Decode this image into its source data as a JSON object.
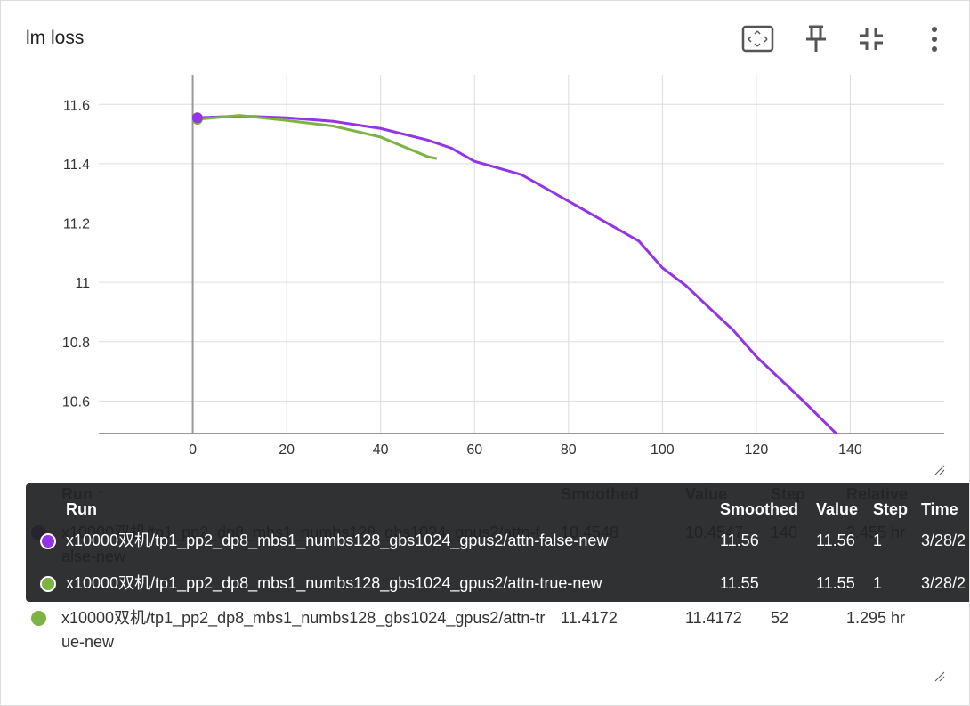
{
  "title": "lm loss",
  "chart_data": {
    "type": "line",
    "xlim": [
      -20,
      160
    ],
    "ylim": [
      10.49,
      11.7
    ],
    "xticks": [
      0,
      20,
      40,
      60,
      80,
      100,
      120,
      140
    ],
    "yticks": [
      10.6,
      10.8,
      11,
      11.2,
      11.4,
      11.6
    ],
    "grid": true,
    "series": [
      {
        "name": "x10000双机/tp1_pp2_dp8_mbs1_numbs128_gbs1024_gpus2/attn-false-new",
        "color": "#9334e6",
        "x": [
          1,
          10,
          20,
          30,
          40,
          50,
          55,
          60,
          70,
          80,
          90,
          95,
          100,
          105,
          110,
          115,
          120,
          125,
          130,
          137,
          140
        ],
        "values": [
          11.555,
          11.561,
          11.555,
          11.543,
          11.519,
          11.48,
          11.453,
          11.408,
          11.363,
          11.274,
          11.184,
          11.139,
          11.049,
          10.989,
          10.914,
          10.84,
          10.75,
          10.675,
          10.6,
          10.49,
          10.4548
        ]
      },
      {
        "name": "x10000双机/tp1_pp2_dp8_mbs1_numbs128_gbs1024_gpus2/attn-true-new",
        "color": "#7cb342",
        "x": [
          1,
          10,
          20,
          30,
          40,
          50,
          52
        ],
        "values": [
          11.55,
          11.563,
          11.546,
          11.527,
          11.49,
          11.424,
          11.4172
        ]
      }
    ]
  },
  "table": {
    "columns": [
      "Run ↑",
      "Smoothed",
      "Value",
      "Step",
      "Relative"
    ],
    "rows": [
      [
        10.4548,
        10.4547,
        140,
        "2.455 hr"
      ],
      [
        11.4172,
        11.4172,
        52,
        "1.295 hr"
      ]
    ]
  },
  "tooltip": {
    "columns": [
      "Run",
      "Smoothed",
      "Value",
      "Step",
      "Time"
    ],
    "rows": [
      [
        11.56,
        11.56,
        1,
        "3/28/2"
      ],
      [
        11.55,
        11.55,
        1,
        "3/28/2"
      ]
    ]
  }
}
